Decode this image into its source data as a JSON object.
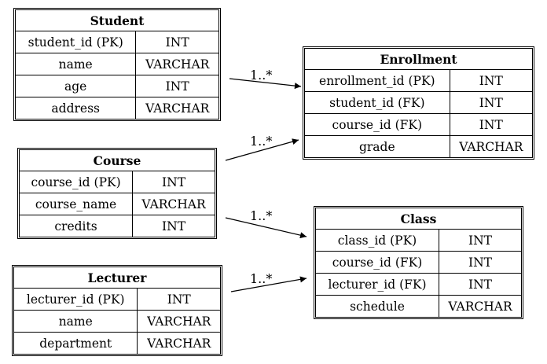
{
  "entities": {
    "student": {
      "name": "Student",
      "fields": [
        {
          "name": "student_id (PK)",
          "type": "INT"
        },
        {
          "name": "name",
          "type": "VARCHAR"
        },
        {
          "name": "age",
          "type": "INT"
        },
        {
          "name": "address",
          "type": "VARCHAR"
        }
      ]
    },
    "course": {
      "name": "Course",
      "fields": [
        {
          "name": "course_id (PK)",
          "type": "INT"
        },
        {
          "name": "course_name",
          "type": "VARCHAR"
        },
        {
          "name": "credits",
          "type": "INT"
        }
      ]
    },
    "lecturer": {
      "name": "Lecturer",
      "fields": [
        {
          "name": "lecturer_id (PK)",
          "type": "INT"
        },
        {
          "name": "name",
          "type": "VARCHAR"
        },
        {
          "name": "department",
          "type": "VARCHAR"
        }
      ]
    },
    "enrollment": {
      "name": "Enrollment",
      "fields": [
        {
          "name": "enrollment_id (PK)",
          "type": "INT"
        },
        {
          "name": "student_id (FK)",
          "type": "INT"
        },
        {
          "name": "course_id (FK)",
          "type": "INT"
        },
        {
          "name": "grade",
          "type": "VARCHAR"
        }
      ]
    },
    "class": {
      "name": "Class",
      "fields": [
        {
          "name": "class_id (PK)",
          "type": "INT"
        },
        {
          "name": "course_id (FK)",
          "type": "INT"
        },
        {
          "name": "lecturer_id (FK)",
          "type": "INT"
        },
        {
          "name": "schedule",
          "type": "VARCHAR"
        }
      ]
    }
  },
  "relations": [
    {
      "from": "student",
      "to": "enrollment",
      "cardinality": "1..*"
    },
    {
      "from": "course",
      "to": "enrollment",
      "cardinality": "1..*"
    },
    {
      "from": "course",
      "to": "class",
      "cardinality": "1..*"
    },
    {
      "from": "lecturer",
      "to": "class",
      "cardinality": "1..*"
    }
  ]
}
